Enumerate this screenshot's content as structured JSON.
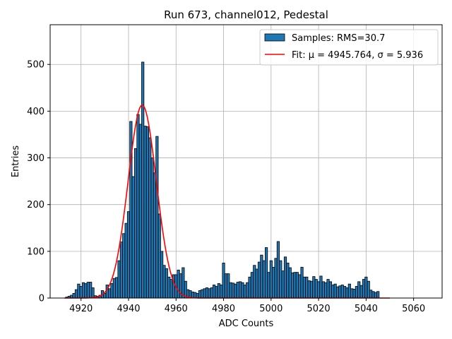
{
  "chart_data": {
    "type": "bar",
    "title": "Run 673, channel012, Pedestal",
    "xlabel": "ADC Counts",
    "ylabel": "Entries",
    "xlim": [
      4907,
      5072
    ],
    "ylim": [
      0,
      585
    ],
    "xticks": [
      4920,
      4940,
      4960,
      4980,
      5000,
      5020,
      5040,
      5060
    ],
    "yticks": [
      0,
      100,
      200,
      300,
      400,
      500
    ],
    "grid": true,
    "legend_position": "top-right",
    "bin_width": 1,
    "bins": [
      [
        4914,
        2
      ],
      [
        4915,
        4
      ],
      [
        4916,
        6
      ],
      [
        4917,
        10
      ],
      [
        4918,
        18
      ],
      [
        4919,
        30
      ],
      [
        4920,
        25
      ],
      [
        4921,
        33
      ],
      [
        4922,
        31
      ],
      [
        4923,
        34
      ],
      [
        4924,
        34
      ],
      [
        4925,
        22
      ],
      [
        4926,
        5
      ],
      [
        4927,
        4
      ],
      [
        4928,
        6
      ],
      [
        4929,
        16
      ],
      [
        4930,
        10
      ],
      [
        4931,
        28
      ],
      [
        4932,
        20
      ],
      [
        4933,
        31
      ],
      [
        4934,
        42
      ],
      [
        4935,
        44
      ],
      [
        4936,
        80
      ],
      [
        4937,
        120
      ],
      [
        4938,
        138
      ],
      [
        4939,
        160
      ],
      [
        4940,
        185
      ],
      [
        4941,
        378
      ],
      [
        4942,
        260
      ],
      [
        4943,
        320
      ],
      [
        4944,
        393
      ],
      [
        4945,
        372
      ],
      [
        4946,
        505
      ],
      [
        4947,
        368
      ],
      [
        4948,
        367
      ],
      [
        4949,
        343
      ],
      [
        4950,
        300
      ],
      [
        4951,
        268
      ],
      [
        4952,
        346
      ],
      [
        4953,
        180
      ],
      [
        4954,
        100
      ],
      [
        4955,
        70
      ],
      [
        4956,
        63
      ],
      [
        4957,
        45
      ],
      [
        4958,
        40
      ],
      [
        4959,
        50
      ],
      [
        4960,
        50
      ],
      [
        4961,
        60
      ],
      [
        4962,
        52
      ],
      [
        4963,
        65
      ],
      [
        4964,
        36
      ],
      [
        4965,
        18
      ],
      [
        4966,
        16
      ],
      [
        4967,
        13
      ],
      [
        4968,
        12
      ],
      [
        4969,
        10
      ],
      [
        4970,
        16
      ],
      [
        4971,
        18
      ],
      [
        4972,
        20
      ],
      [
        4973,
        22
      ],
      [
        4974,
        20
      ],
      [
        4975,
        22
      ],
      [
        4976,
        28
      ],
      [
        4977,
        25
      ],
      [
        4978,
        31
      ],
      [
        4979,
        28
      ],
      [
        4980,
        75
      ],
      [
        4981,
        52
      ],
      [
        4982,
        52
      ],
      [
        4983,
        33
      ],
      [
        4984,
        32
      ],
      [
        4985,
        30
      ],
      [
        4986,
        34
      ],
      [
        4987,
        35
      ],
      [
        4988,
        33
      ],
      [
        4989,
        28
      ],
      [
        4990,
        33
      ],
      [
        4991,
        45
      ],
      [
        4992,
        55
      ],
      [
        4993,
        70
      ],
      [
        4994,
        62
      ],
      [
        4995,
        77
      ],
      [
        4996,
        92
      ],
      [
        4997,
        80
      ],
      [
        4998,
        108
      ],
      [
        4999,
        55
      ],
      [
        5000,
        80
      ],
      [
        5001,
        66
      ],
      [
        5002,
        85
      ],
      [
        5003,
        121
      ],
      [
        5004,
        80
      ],
      [
        5005,
        58
      ],
      [
        5006,
        88
      ],
      [
        5007,
        75
      ],
      [
        5008,
        65
      ],
      [
        5009,
        54
      ],
      [
        5010,
        55
      ],
      [
        5011,
        55
      ],
      [
        5012,
        50
      ],
      [
        5013,
        66
      ],
      [
        5014,
        45
      ],
      [
        5015,
        45
      ],
      [
        5016,
        37
      ],
      [
        5017,
        36
      ],
      [
        5018,
        46
      ],
      [
        5019,
        40
      ],
      [
        5020,
        35
      ],
      [
        5021,
        47
      ],
      [
        5022,
        35
      ],
      [
        5023,
        33
      ],
      [
        5024,
        40
      ],
      [
        5025,
        35
      ],
      [
        5026,
        28
      ],
      [
        5027,
        30
      ],
      [
        5028,
        24
      ],
      [
        5029,
        26
      ],
      [
        5030,
        28
      ],
      [
        5031,
        25
      ],
      [
        5032,
        22
      ],
      [
        5033,
        30
      ],
      [
        5034,
        20
      ],
      [
        5035,
        19
      ],
      [
        5036,
        25
      ],
      [
        5037,
        35
      ],
      [
        5038,
        27
      ],
      [
        5039,
        40
      ],
      [
        5040,
        45
      ],
      [
        5041,
        36
      ],
      [
        5042,
        17
      ],
      [
        5043,
        14
      ],
      [
        5044,
        12
      ],
      [
        5045,
        14
      ]
    ],
    "fit": {
      "mu": 4945.764,
      "sigma": 5.936,
      "amplitude": 413,
      "x_range": [
        4913,
        5050
      ]
    },
    "legend": [
      {
        "label": "Samples: RMS=30.7",
        "kind": "patch",
        "color": "#1f77b4"
      },
      {
        "label": "Fit: μ = 4945.764, σ = 5.936",
        "kind": "line",
        "color": "#ff0000"
      }
    ],
    "colors": {
      "bar_fill": "#1f77b4",
      "bar_edge": "#000000",
      "fit_line": "#ff0000"
    }
  }
}
